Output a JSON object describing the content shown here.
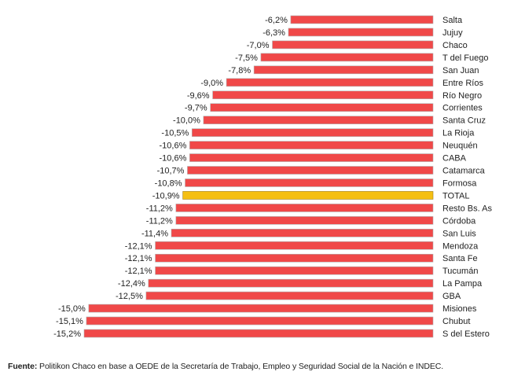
{
  "chart_data": {
    "type": "bar",
    "orientation": "horizontal",
    "categories": [
      "Salta",
      "Jujuy",
      "Chaco",
      "T del Fuego",
      "San Juan",
      "Entre Ríos",
      "Río Negro",
      "Corrientes",
      "Santa Cruz",
      "La Rioja",
      "Neuquén",
      "CABA",
      "Catamarca",
      "Formosa",
      "TOTAL",
      "Resto Bs. As",
      "Córdoba",
      "San Luis",
      "Mendoza",
      "Santa Fe",
      "Tucumán",
      "La Pampa",
      "GBA",
      "Misiones",
      "Chubut",
      "S del Estero"
    ],
    "values": [
      -6.2,
      -6.3,
      -7.0,
      -7.5,
      -7.8,
      -9.0,
      -9.6,
      -9.7,
      -10.0,
      -10.5,
      -10.6,
      -10.6,
      -10.7,
      -10.8,
      -10.9,
      -11.2,
      -11.2,
      -11.4,
      -12.1,
      -12.1,
      -12.1,
      -12.4,
      -12.5,
      -15.0,
      -15.1,
      -15.2
    ],
    "data_labels": [
      "-6,2%",
      "-6,3%",
      "-7,0%",
      "-7,5%",
      "-7,8%",
      "-9,0%",
      "-9,6%",
      "-9,7%",
      "-10,0%",
      "-10,5%",
      "-10,6%",
      "-10,6%",
      "-10,7%",
      "-10,8%",
      "-10,9%",
      "-11,2%",
      "-11,2%",
      "-11,4%",
      "-12,1%",
      "-12,1%",
      "-12,1%",
      "-12,4%",
      "-12,5%",
      "-15,0%",
      "-15,1%",
      "-15,2%"
    ],
    "highlight_category": "TOTAL",
    "colors": {
      "bar": "#f04848",
      "highlight": "#f5bf12",
      "bar_border": "#b0b0b0",
      "highlight_border": "#a08020"
    },
    "xlim": [
      -15.2,
      0
    ],
    "grid": false,
    "legend": "none"
  },
  "source": {
    "label": "Fuente:",
    "text": " Politikon Chaco en base a OEDE de la Secretaría de Trabajo, Empleo y Seguridad Social de la Nación e INDEC."
  }
}
